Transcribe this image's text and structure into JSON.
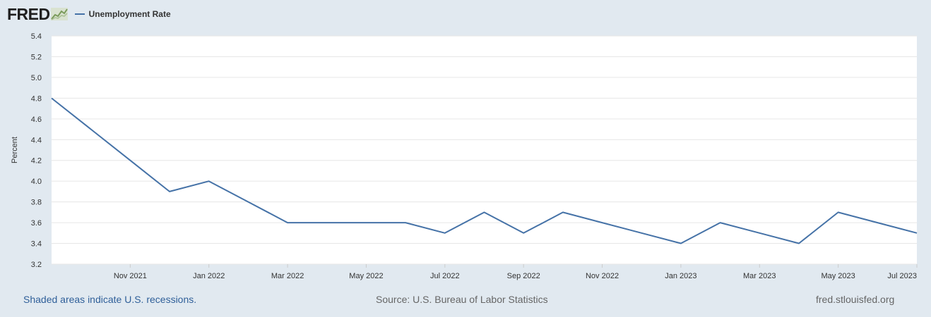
{
  "header": {
    "logo_text": "FRED",
    "logo_icon": "chart-line-icon"
  },
  "colors": {
    "background": "#e1e9f0",
    "plot_background": "#ffffff",
    "series_line": "#4572a7",
    "grid": "#e6e6e6",
    "axis_text": "#333333",
    "footer_link": "#2f5f99"
  },
  "chart_data": {
    "type": "line",
    "title": "",
    "xlabel": "",
    "ylabel": "Percent",
    "ylim": [
      3.2,
      5.4
    ],
    "y_ticks": [
      "3.2",
      "3.4",
      "3.6",
      "3.8",
      "4.0",
      "4.2",
      "4.4",
      "4.6",
      "4.8",
      "5.0",
      "5.2",
      "5.4"
    ],
    "x_ticks": [
      "Nov 2021",
      "Jan 2022",
      "Mar 2022",
      "May 2022",
      "Jul 2022",
      "Sep 2022",
      "Nov 2022",
      "Jan 2023",
      "Mar 2023",
      "May 2023",
      "Jul 2023"
    ],
    "grid": true,
    "legend": "top-left",
    "x": [
      "Sep 2021",
      "Oct 2021",
      "Nov 2021",
      "Dec 2021",
      "Jan 2022",
      "Feb 2022",
      "Mar 2022",
      "Apr 2022",
      "May 2022",
      "Jun 2022",
      "Jul 2022",
      "Aug 2022",
      "Sep 2022",
      "Oct 2022",
      "Nov 2022",
      "Dec 2022",
      "Jan 2023",
      "Feb 2023",
      "Mar 2023",
      "Apr 2023",
      "May 2023",
      "Jun 2023",
      "Jul 2023"
    ],
    "series": [
      {
        "name": "Unemployment Rate",
        "values": [
          4.8,
          4.5,
          4.2,
          3.9,
          4.0,
          3.8,
          3.6,
          3.6,
          3.6,
          3.6,
          3.5,
          3.7,
          3.5,
          3.7,
          3.6,
          3.5,
          3.4,
          3.6,
          3.5,
          3.4,
          3.7,
          3.6,
          3.5
        ]
      }
    ]
  },
  "footer": {
    "recession_note": "Shaded areas indicate U.S. recessions.",
    "source": "Source: U.S. Bureau of Labor Statistics",
    "site": "fred.stlouisfed.org"
  }
}
